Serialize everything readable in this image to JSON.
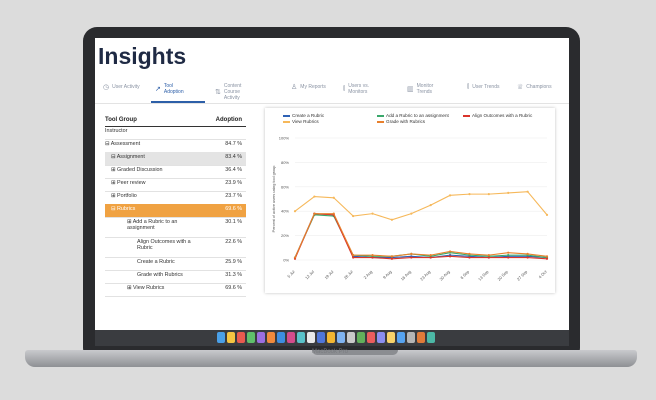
{
  "insights": {
    "title": "Insights",
    "tabs": [
      {
        "label": "User Activity",
        "icon": "clock-icon"
      },
      {
        "label": "Tool Adoption",
        "icon": "wrench-icon"
      },
      {
        "label": "Content Course Activity",
        "icon": "list-icon"
      },
      {
        "label": "My Reports",
        "icon": "person-icon"
      },
      {
        "label": "Users vs. Monitors",
        "icon": "bar-icon"
      },
      {
        "label": "Monitor Trends",
        "icon": "building-icon"
      },
      {
        "label": "User Trends",
        "icon": "bar-icon"
      },
      {
        "label": "Champions",
        "icon": "badge-icon"
      }
    ],
    "active_tab": 1
  },
  "table": {
    "headers": [
      "Tool Group",
      "Adoption"
    ],
    "rows": [
      {
        "name": "Instructor",
        "value": "",
        "indent": 0,
        "style": "plain"
      },
      {
        "name": "⊟ Assessment",
        "value": "84.7 %",
        "indent": 0,
        "style": "plain"
      },
      {
        "name": "⊟ Assignment",
        "value": "83.4 %",
        "indent": 1,
        "style": "grey"
      },
      {
        "name": "⊞ Graded Discussion",
        "value": "36.4 %",
        "indent": 1,
        "style": "plain"
      },
      {
        "name": "⊞ Peer review",
        "value": "23.9 %",
        "indent": 1,
        "style": "plain"
      },
      {
        "name": "⊞ Portfolio",
        "value": "23.7 %",
        "indent": 1,
        "style": "plain"
      },
      {
        "name": "⊟ Rubrics",
        "value": "69.6 %",
        "indent": 1,
        "style": "orange"
      },
      {
        "name": "⊞ Add a Rubric to an assignment",
        "value": "30.1 %",
        "indent": 2,
        "style": "plain"
      },
      {
        "name": "Align Outcomes with a Rubric",
        "value": "22.6 %",
        "indent": 3,
        "style": "plain"
      },
      {
        "name": "Create a Rubric",
        "value": "25.9 %",
        "indent": 3,
        "style": "plain"
      },
      {
        "name": "Grade with Rubrics",
        "value": "31.3 %",
        "indent": 3,
        "style": "plain"
      },
      {
        "name": "⊞ View Rubrics",
        "value": "69.6 %",
        "indent": 2,
        "style": "plain"
      }
    ]
  },
  "chart_data": {
    "type": "line",
    "ylabel": "Percent of active users using tool group",
    "ylim": [
      0,
      100
    ],
    "yticks": [
      "0%",
      "20%",
      "40%",
      "60%",
      "80%",
      "100%"
    ],
    "categories": [
      "5 Jul",
      "12 Jul",
      "19 Jul",
      "26 Jul",
      "2 Aug",
      "9 Aug",
      "16 Aug",
      "23 Aug",
      "30 Aug",
      "6 Sep",
      "13 Sep",
      "20 Sep",
      "27 Sep",
      "4 Oct"
    ],
    "series": [
      {
        "name": "Create a Rubric",
        "color": "#2f62b5",
        "values": [
          2,
          38,
          37,
          3,
          2,
          2,
          3,
          2,
          4,
          3,
          2,
          3,
          3,
          2
        ]
      },
      {
        "name": "Add a Rubric to an assignment",
        "color": "#3aa86b",
        "values": [
          2,
          37,
          36,
          4,
          3,
          3,
          5,
          3,
          6,
          4,
          3,
          4,
          4,
          2
        ]
      },
      {
        "name": "Align Outcomes with a Rubric",
        "color": "#d9342b",
        "values": [
          1,
          38,
          37,
          2,
          2,
          1,
          2,
          2,
          3,
          2,
          2,
          2,
          2,
          1
        ]
      },
      {
        "name": "View Rubrics",
        "color": "#f6b85a",
        "values": [
          40,
          52,
          51,
          36,
          38,
          33,
          38,
          45,
          53,
          54,
          54,
          55,
          56,
          37
        ]
      },
      {
        "name": "Grade with Rubrics",
        "color": "#e8802c",
        "values": [
          2,
          38,
          38,
          4,
          4,
          3,
          5,
          4,
          7,
          5,
          4,
          6,
          5,
          3
        ]
      }
    ]
  },
  "laptop": {
    "brand": "MacBook Pro",
    "dock_colors": [
      "#4aa0e8",
      "#f5c542",
      "#e85a4f",
      "#5fbf6b",
      "#9b6ee0",
      "#f08a3c",
      "#3d8ee0",
      "#d44c8c",
      "#59c2c9",
      "#e8e8e8",
      "#4f76d9",
      "#f2b632",
      "#7fb3f0",
      "#c9c9c9",
      "#62b05b",
      "#ea5d5d",
      "#8a8ef0",
      "#f7d26a",
      "#56a3f0",
      "#b5b5b5",
      "#e07b39",
      "#4cb8a6"
    ]
  }
}
